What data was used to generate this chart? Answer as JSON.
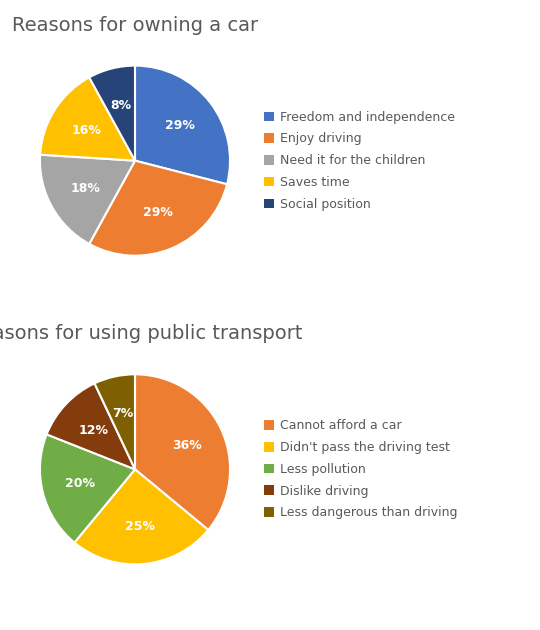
{
  "chart1": {
    "title": "Reasons for owning a car",
    "labels": [
      "Freedom and independence",
      "Enjoy driving",
      "Need it for the children",
      "Saves time",
      "Social position"
    ],
    "values": [
      29,
      29,
      18,
      16,
      8
    ],
    "colors": [
      "#4472C4",
      "#ED7D31",
      "#A5A5A5",
      "#FFC000",
      "#264478"
    ],
    "pct_labels": [
      "29%",
      "29%",
      "18%",
      "16%",
      "8%"
    ],
    "startangle": 90
  },
  "chart2": {
    "title": "Reasons for using public transport",
    "labels": [
      "Cannot afford a car",
      "Didn't pass the driving test",
      "Less pollution",
      "Dislike driving",
      "Less dangerous than driving"
    ],
    "values": [
      36,
      25,
      20,
      12,
      7
    ],
    "colors": [
      "#ED7D31",
      "#FFC000",
      "#70AD47",
      "#843C0C",
      "#7F6000"
    ],
    "pct_labels": [
      "36%",
      "25%",
      "20%",
      "12%",
      "7%"
    ],
    "startangle": 90
  },
  "background_color": "#FFFFFF",
  "title_fontsize": 14,
  "label_fontsize": 9,
  "legend_fontsize": 9,
  "legend_marker_color": "#595959",
  "text_color": "#595959"
}
